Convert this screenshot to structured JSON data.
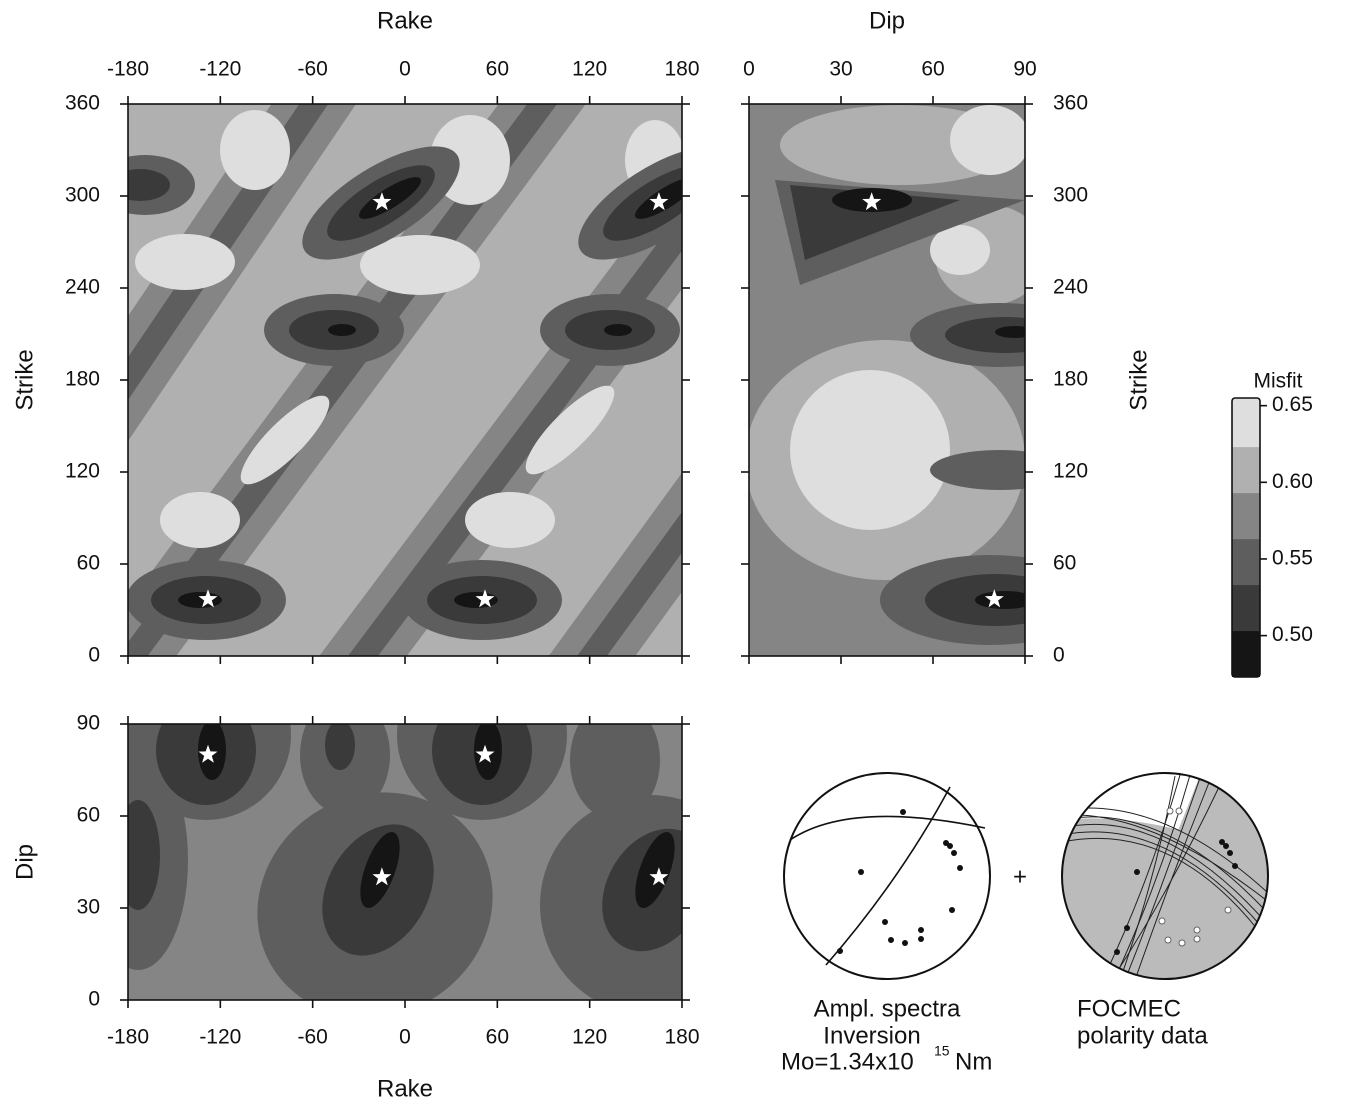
{
  "chart_data": [
    {
      "type": "contour",
      "x_label": "Rake",
      "y_label": "Strike",
      "x_axis_side": "top",
      "y_axis_side": "left",
      "xlim": [
        -180,
        180
      ],
      "xticks": [
        -180,
        -120,
        -60,
        0,
        60,
        120,
        180
      ],
      "ylim": [
        0,
        360
      ],
      "yticks": [
        0,
        60,
        120,
        180,
        240,
        300,
        360
      ],
      "x": [
        -15,
        165,
        -128,
        52
      ],
      "y": [
        296,
        296,
        37,
        37
      ],
      "marker_color": "#ffffff"
    },
    {
      "type": "contour",
      "x_label": "Dip",
      "y_label": "Strike",
      "x_axis_side": "top",
      "y_axis_side": "right",
      "xlim": [
        0,
        90
      ],
      "xticks": [
        0,
        30,
        60,
        90
      ],
      "ylim": [
        0,
        360
      ],
      "yticks": [
        0,
        60,
        120,
        180,
        240,
        300,
        360
      ],
      "x": [
        40,
        80
      ],
      "y": [
        296,
        37
      ],
      "marker_color": "#ffffff"
    },
    {
      "type": "contour",
      "x_label": "Rake",
      "y_label": "Dip",
      "x_axis_side": "bottom",
      "y_axis_side": "left",
      "xlim": [
        -180,
        180
      ],
      "xticks": [
        -180,
        -120,
        -60,
        0,
        60,
        120,
        180
      ],
      "ylim": [
        0,
        90
      ],
      "yticks": [
        0,
        30,
        60,
        90
      ],
      "x": [
        -128,
        52,
        -15,
        165
      ],
      "y": [
        80,
        80,
        40,
        40
      ],
      "marker_color": "#ffffff"
    },
    {
      "type": "colorbar",
      "title": "Misfit",
      "ylim": [
        0.473,
        0.655
      ],
      "yticks": [
        {
          "value": 0.5,
          "label": "0.50"
        },
        0.55,
        {
          "value": 0.6,
          "label": "0.60"
        },
        0.65
      ],
      "levels": [
        0.473,
        0.503,
        0.533,
        0.563,
        0.593,
        0.623,
        0.655
      ],
      "colors": [
        "#151515",
        "#3a3a3a",
        "#5e5e5e",
        "#858585",
        "#b0b0b0",
        "#dedede"
      ]
    }
  ],
  "operator": "+",
  "beachballs": [
    {
      "caption": [
        "Ampl. spectra",
        "Inversion"
      ],
      "moment": "Mo=1.34x10",
      "exponent": "15",
      "unit": "Nm"
    },
    {
      "caption": [
        "FOCMEC",
        "polarity data"
      ]
    }
  ]
}
